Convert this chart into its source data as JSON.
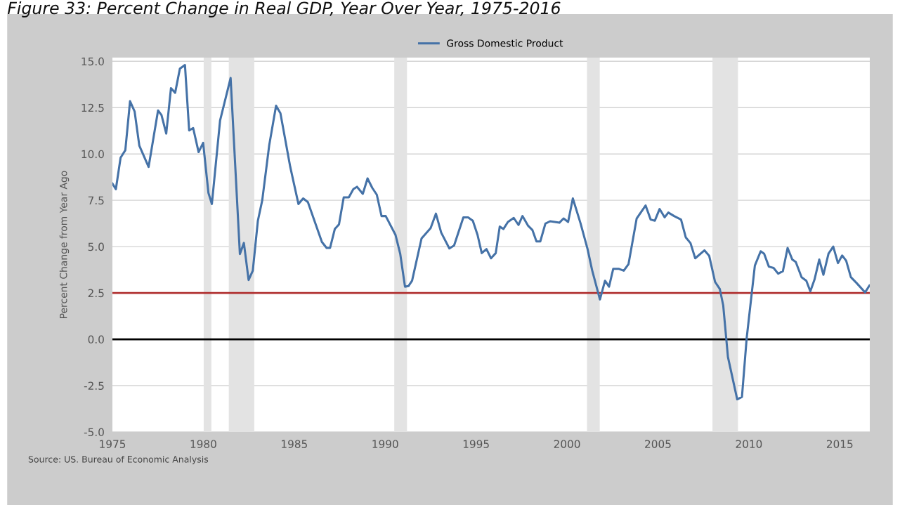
{
  "chart_data": {
    "type": "line",
    "title": "Figure 33: Percent Change in Real GDP, Year Over Year, 1975-2016",
    "ylabel": "Percent Change from Year Ago",
    "annotations": [
      "Source: US. Bureau of Economic Analysis"
    ],
    "legend": "top",
    "grid": "y",
    "xlim": [
      1975.0,
      2016.65
    ],
    "xticks": [
      1975,
      1980,
      1985,
      1990,
      1995,
      2000,
      2005,
      2010,
      2015
    ],
    "ylim": [
      -5.0,
      15.2
    ],
    "yticks": [
      {
        "value": -5,
        "label": "-5.0"
      },
      -2.5,
      {
        "value": 0,
        "label": "0.0"
      },
      2.5,
      {
        "value": 5,
        "label": "5.0"
      },
      7.5,
      {
        "value": 10,
        "label": "10.0"
      },
      12.5,
      {
        "value": 15,
        "label": "15.0"
      }
    ],
    "ref_lines": [
      {
        "axis": "y",
        "value": 2.5,
        "color": "#b03030"
      },
      {
        "axis": "y",
        "value": 0.0,
        "color": "#000000"
      }
    ],
    "bands": [
      {
        "axis": "x",
        "from": 1980.02,
        "to": 1980.44,
        "color": "#e3e3e3"
      },
      {
        "axis": "x",
        "from": 1981.4,
        "to": 1982.8,
        "color": "#e3e3e3"
      },
      {
        "axis": "x",
        "from": 1990.5,
        "to": 1991.2,
        "color": "#e3e3e3"
      },
      {
        "axis": "x",
        "from": 2001.1,
        "to": 2001.8,
        "color": "#e3e3e3"
      },
      {
        "axis": "x",
        "from": 2008.0,
        "to": 2009.4,
        "color": "#e3e3e3"
      }
    ],
    "series": [
      {
        "name": "Gross Domestic Product",
        "color": "#4572a7",
        "x": [
          1975.0,
          1975.19,
          1975.45,
          1975.71,
          1975.97,
          1976.22,
          1976.48,
          1976.99,
          1977.51,
          1977.7,
          1977.96,
          1978.22,
          1978.45,
          1978.71,
          1978.99,
          1979.22,
          1979.44,
          1979.74,
          1979.99,
          1980.28,
          1980.47,
          1980.92,
          1981.5,
          1982.01,
          1982.23,
          1982.49,
          1982.72,
          1983.0,
          1983.24,
          1983.62,
          1984.0,
          1984.24,
          1984.78,
          1985.23,
          1985.49,
          1985.75,
          1986.52,
          1986.78,
          1986.97,
          1987.23,
          1987.46,
          1987.72,
          1988.0,
          1988.25,
          1988.45,
          1988.77,
          1989.03,
          1989.29,
          1989.54,
          1989.8,
          1990.03,
          1990.57,
          1990.83,
          1991.09,
          1991.28,
          1991.48,
          1992.0,
          1992.5,
          1992.79,
          1993.08,
          1993.53,
          1993.79,
          1994.3,
          1994.56,
          1994.82,
          1995.08,
          1995.31,
          1995.57,
          1995.82,
          1996.08,
          1996.3,
          1996.5,
          1996.75,
          1997.07,
          1997.33,
          1997.55,
          1997.85,
          1998.1,
          1998.32,
          1998.53,
          1998.81,
          1999.07,
          1999.58,
          1999.81,
          2000.06,
          2000.32,
          2000.74,
          2001.13,
          2001.38,
          2001.81,
          2002.09,
          2002.31,
          2002.54,
          2002.86,
          2003.12,
          2003.38,
          2003.83,
          2004.32,
          2004.6,
          2004.83,
          2005.09,
          2005.37,
          2005.57,
          2005.89,
          2006.27,
          2006.53,
          2006.79,
          2007.05,
          2007.56,
          2007.82,
          2008.14,
          2008.4,
          2008.59,
          2008.85,
          2009.36,
          2009.62,
          2009.88,
          2010.33,
          2010.65,
          2010.84,
          2011.1,
          2011.36,
          2011.61,
          2011.87,
          2012.13,
          2012.39,
          2012.58,
          2012.9,
          2013.16,
          2013.38,
          2013.61,
          2013.87,
          2014.1,
          2014.38,
          2014.64,
          2014.9,
          2015.13,
          2015.35,
          2015.61,
          2015.93,
          2016.39,
          2016.63
        ],
        "values": [
          8.4,
          8.1,
          9.8,
          10.2,
          12.85,
          12.3,
          10.45,
          9.3,
          12.35,
          12.1,
          11.1,
          13.55,
          13.3,
          14.6,
          14.8,
          11.27,
          11.4,
          10.1,
          10.6,
          7.9,
          7.3,
          11.8,
          14.1,
          4.6,
          5.2,
          3.2,
          3.7,
          6.4,
          7.5,
          10.45,
          12.6,
          12.2,
          9.3,
          7.3,
          7.6,
          7.4,
          5.25,
          4.93,
          4.93,
          5.95,
          6.2,
          7.66,
          7.66,
          8.1,
          8.23,
          7.85,
          8.68,
          8.17,
          7.8,
          6.65,
          6.65,
          5.63,
          4.6,
          2.84,
          2.87,
          3.16,
          5.44,
          6.0,
          6.78,
          5.76,
          4.9,
          5.06,
          6.58,
          6.58,
          6.4,
          5.63,
          4.65,
          4.87,
          4.37,
          4.65,
          6.08,
          5.95,
          6.33,
          6.55,
          6.17,
          6.65,
          6.14,
          5.89,
          5.28,
          5.28,
          6.24,
          6.37,
          6.29,
          6.52,
          6.33,
          7.6,
          6.27,
          4.87,
          3.73,
          2.15,
          3.16,
          2.84,
          3.8,
          3.8,
          3.7,
          4.05,
          6.52,
          7.22,
          6.46,
          6.4,
          7.03,
          6.58,
          6.84,
          6.65,
          6.46,
          5.5,
          5.19,
          4.37,
          4.8,
          4.5,
          3.1,
          2.72,
          1.83,
          -0.96,
          -3.24,
          -3.11,
          0.06,
          3.98,
          4.75,
          4.62,
          3.92,
          3.85,
          3.54,
          3.67,
          4.93,
          4.3,
          4.17,
          3.35,
          3.16,
          2.59,
          3.22,
          4.3,
          3.48,
          4.62,
          5.0,
          4.11,
          4.52,
          4.24,
          3.35,
          3.03,
          2.53,
          2.9
        ]
      }
    ]
  }
}
